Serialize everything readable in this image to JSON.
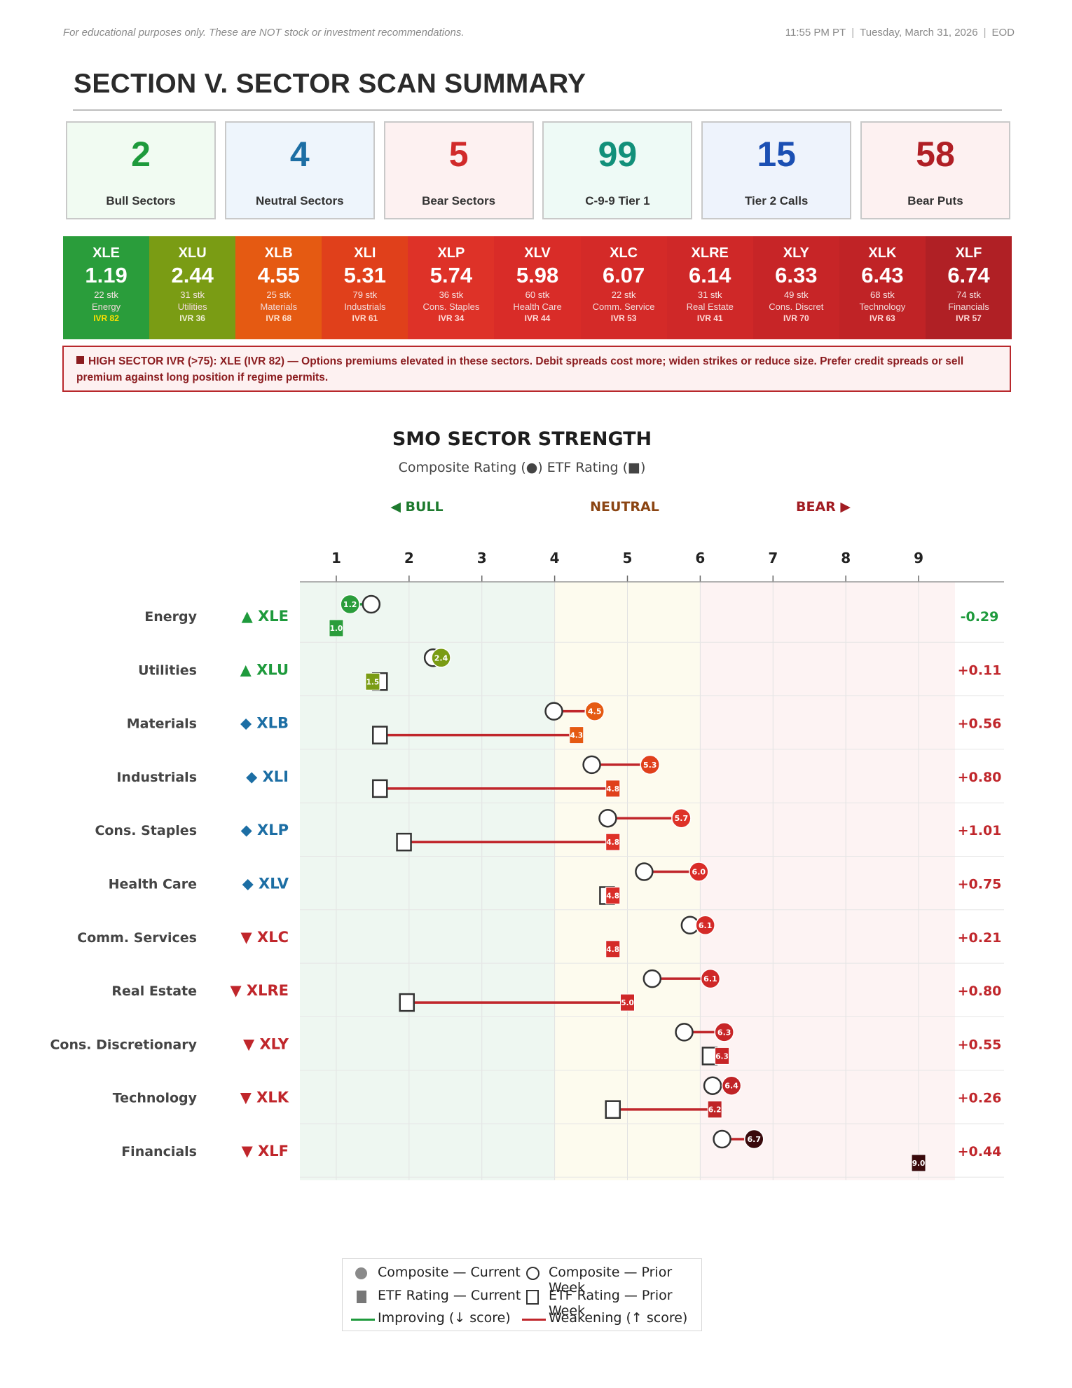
{
  "header": {
    "disclaimer": "For educational purposes only. These are NOT stock or investment recommendations.",
    "time": "11:55 PM PT",
    "date": "Tuesday, March 31, 2026",
    "mode": "EOD"
  },
  "section_title": "SECTION V. SECTOR SCAN SUMMARY",
  "stats": [
    {
      "value": "2",
      "label": "Bull Sectors",
      "color": "#1e9a3c",
      "bg": "#f1fbf2"
    },
    {
      "value": "4",
      "label": "Neutral Sectors",
      "color": "#1c6ea4",
      "bg": "#eef5fc"
    },
    {
      "value": "5",
      "label": "Bear Sectors",
      "color": "#d12a2a",
      "bg": "#fdf1f1"
    },
    {
      "value": "99",
      "label": "C-9-9 Tier 1",
      "color": "#12907a",
      "bg": "#eefaf6"
    },
    {
      "value": "15",
      "label": "Tier 2 Calls",
      "color": "#1b4fb3",
      "bg": "#eef3fc"
    },
    {
      "value": "58",
      "label": "Bear Puts",
      "color": "#b01f25",
      "bg": "#fdf1f1"
    }
  ],
  "sectors": [
    {
      "ticker": "XLE",
      "score": "1.19",
      "stocks": "22 stk",
      "name": "Energy",
      "ivr": "IVR 82",
      "color": "#2a9d3b",
      "ivr_color": "#ffe000"
    },
    {
      "ticker": "XLU",
      "score": "2.44",
      "stocks": "31 stk",
      "name": "Utilities",
      "ivr": "IVR 36",
      "color": "#7a9c14",
      "ivr_color": "#f0f0d8"
    },
    {
      "ticker": "XLB",
      "score": "4.55",
      "stocks": "25 stk",
      "name": "Materials",
      "ivr": "IVR 68",
      "color": "#e55a12",
      "ivr_color": "#ffe2cf"
    },
    {
      "ticker": "XLI",
      "score": "5.31",
      "stocks": "79 stk",
      "name": "Industrials",
      "ivr": "IVR 61",
      "color": "#e0401b",
      "ivr_color": "#ffdcd0"
    },
    {
      "ticker": "XLP",
      "score": "5.74",
      "stocks": "36 stk",
      "name": "Cons. Staples",
      "ivr": "IVR 34",
      "color": "#de3228",
      "ivr_color": "#ffdcd9"
    },
    {
      "ticker": "XLV",
      "score": "5.98",
      "stocks": "60 stk",
      "name": "Health Care",
      "ivr": "IVR 44",
      "color": "#d92c28",
      "ivr_color": "#ffdcd9"
    },
    {
      "ticker": "XLC",
      "score": "6.07",
      "stocks": "22 stk",
      "name": "Comm. Service",
      "ivr": "IVR 53",
      "color": "#d42a28",
      "ivr_color": "#ffdcd9"
    },
    {
      "ticker": "XLRE",
      "score": "6.14",
      "stocks": "31 stk",
      "name": "Real Estate",
      "ivr": "IVR 41",
      "color": "#cf2828",
      "ivr_color": "#ffdcd9"
    },
    {
      "ticker": "XLY",
      "score": "6.33",
      "stocks": "49 stk",
      "name": "Cons. Discret",
      "ivr": "IVR 70",
      "color": "#c72527",
      "ivr_color": "#ffdcd9"
    },
    {
      "ticker": "XLK",
      "score": "6.43",
      "stocks": "68 stk",
      "name": "Technology",
      "ivr": "IVR 63",
      "color": "#c02326",
      "ivr_color": "#ffdcd9"
    },
    {
      "ticker": "XLF",
      "score": "6.74",
      "stocks": "74 stk",
      "name": "Financials",
      "ivr": "IVR 57",
      "color": "#b02025",
      "ivr_color": "#ffdcd9"
    }
  ],
  "warning": "HIGH SECTOR IVR (>75): XLE (IVR 82) — Options premiums elevated in these sectors. Debit spreads cost more; widen strikes or reduce size. Prefer credit spreads or sell premium against long position if regime permits.",
  "chart_title": "SMO SECTOR STRENGTH",
  "chart_subtitle": "Composite Rating (●)   ETF Rating (■)",
  "chart_data": {
    "type": "scatter",
    "title": "SMO SECTOR STRENGTH",
    "subtitle": "Composite Rating (●)   ETF Rating (■)",
    "zones": [
      {
        "label": "◀ BULL",
        "from": 0.5,
        "to": 4,
        "color": "#1e7a2e",
        "bg": "#eef7f1"
      },
      {
        "label": "NEUTRAL",
        "from": 4,
        "to": 6,
        "color": "#8b4513",
        "bg": "#fdfbee"
      },
      {
        "label": "BEAR ▶",
        "from": 6,
        "to": 9.5,
        "color": "#a11c22",
        "bg": "#fdf3f3"
      }
    ],
    "xlim": [
      0.5,
      9.5
    ],
    "xticks": [
      "1",
      "2",
      "3",
      "4",
      "5",
      "6",
      "7",
      "8",
      "9"
    ],
    "grid": true,
    "rows": [
      {
        "sector": "Energy",
        "ticker": "XLE",
        "marker": "▲",
        "ticker_color": "#1e9a3c",
        "composite": 1.19,
        "composite_label": "1.2",
        "composite_prior": 1.48,
        "etf": 1.0,
        "etf_label": "1.0",
        "etf_prior": 1.0,
        "change": "-0.29",
        "change_color": "#1e9a3c",
        "color": "#2a9d3b"
      },
      {
        "sector": "Utilities",
        "ticker": "XLU",
        "marker": "▲",
        "ticker_color": "#1e9a3c",
        "composite": 2.44,
        "composite_label": "2.4",
        "composite_prior": 2.33,
        "etf": 1.5,
        "etf_label": "1.5",
        "etf_prior": 1.6,
        "change": "+0.11",
        "change_color": "#c0262b",
        "color": "#7a9c14"
      },
      {
        "sector": "Materials",
        "ticker": "XLB",
        "marker": "◆",
        "ticker_color": "#1c6ea4",
        "composite": 4.55,
        "composite_label": "4.5",
        "composite_prior": 3.99,
        "etf": 4.3,
        "etf_label": "4.3",
        "etf_prior": 1.6,
        "change": "+0.56",
        "change_color": "#c0262b",
        "color": "#e55a12"
      },
      {
        "sector": "Industrials",
        "ticker": "XLI",
        "marker": "◆",
        "ticker_color": "#1c6ea4",
        "composite": 5.31,
        "composite_label": "5.3",
        "composite_prior": 4.51,
        "etf": 4.8,
        "etf_label": "4.8",
        "etf_prior": 1.6,
        "change": "+0.80",
        "change_color": "#c0262b",
        "color": "#e0401b"
      },
      {
        "sector": "Cons. Staples",
        "ticker": "XLP",
        "marker": "◆",
        "ticker_color": "#1c6ea4",
        "composite": 5.74,
        "composite_label": "5.7",
        "composite_prior": 4.73,
        "etf": 4.8,
        "etf_label": "4.8",
        "etf_prior": 1.93,
        "change": "+1.01",
        "change_color": "#c0262b",
        "color": "#de3228"
      },
      {
        "sector": "Health Care",
        "ticker": "XLV",
        "marker": "◆",
        "ticker_color": "#1c6ea4",
        "composite": 5.98,
        "composite_label": "6.0",
        "composite_prior": 5.23,
        "etf": 4.8,
        "etf_label": "4.8",
        "etf_prior": 4.72,
        "change": "+0.75",
        "change_color": "#c0262b",
        "color": "#d92c28"
      },
      {
        "sector": "Comm. Services",
        "ticker": "XLC",
        "marker": "▼",
        "ticker_color": "#c0262b",
        "composite": 6.07,
        "composite_label": "6.1",
        "composite_prior": 5.86,
        "etf": 4.8,
        "etf_label": "4.8",
        "etf_prior": 4.8,
        "change": "+0.21",
        "change_color": "#c0262b",
        "color": "#d42a28"
      },
      {
        "sector": "Real Estate",
        "ticker": "XLRE",
        "marker": "▼",
        "ticker_color": "#c0262b",
        "composite": 6.14,
        "composite_label": "6.1",
        "composite_prior": 5.34,
        "etf": 5.0,
        "etf_label": "5.0",
        "etf_prior": 1.97,
        "change": "+0.80",
        "change_color": "#c0262b",
        "color": "#cf2828"
      },
      {
        "sector": "Cons. Discretionary",
        "ticker": "XLY",
        "marker": "▼",
        "ticker_color": "#c0262b",
        "composite": 6.33,
        "composite_label": "6.3",
        "composite_prior": 5.78,
        "etf": 6.3,
        "etf_label": "6.3",
        "etf_prior": 6.13,
        "change": "+0.55",
        "change_color": "#c0262b",
        "color": "#c72527"
      },
      {
        "sector": "Technology",
        "ticker": "XLK",
        "marker": "▼",
        "ticker_color": "#c0262b",
        "composite": 6.43,
        "composite_label": "6.4",
        "composite_prior": 6.17,
        "etf": 6.2,
        "etf_label": "6.2",
        "etf_prior": 4.8,
        "change": "+0.26",
        "change_color": "#c0262b",
        "color": "#c02326"
      },
      {
        "sector": "Financials",
        "ticker": "XLF",
        "marker": "▼",
        "ticker_color": "#c0262b",
        "composite": 6.74,
        "composite_label": "6.7",
        "composite_prior": 6.3,
        "etf": 9.0,
        "etf_label": "9.0",
        "etf_prior": 9.0,
        "change": "+0.44",
        "change_color": "#c0262b",
        "color": "#3a0a0c"
      }
    ]
  },
  "legend": [
    {
      "label": "Composite — Current",
      "symbol": "dot"
    },
    {
      "label": "Composite — Prior Week",
      "symbol": "ring"
    },
    {
      "label": "ETF Rating — Current",
      "symbol": "square"
    },
    {
      "label": "ETF Rating — Prior Week",
      "symbol": "square-outline"
    },
    {
      "label": "Improving (↓ score)",
      "symbol": "green-line",
      "color": "#1e9a3c"
    },
    {
      "label": "Weakening (↑ score)",
      "symbol": "red-line",
      "color": "#c0262b"
    }
  ]
}
